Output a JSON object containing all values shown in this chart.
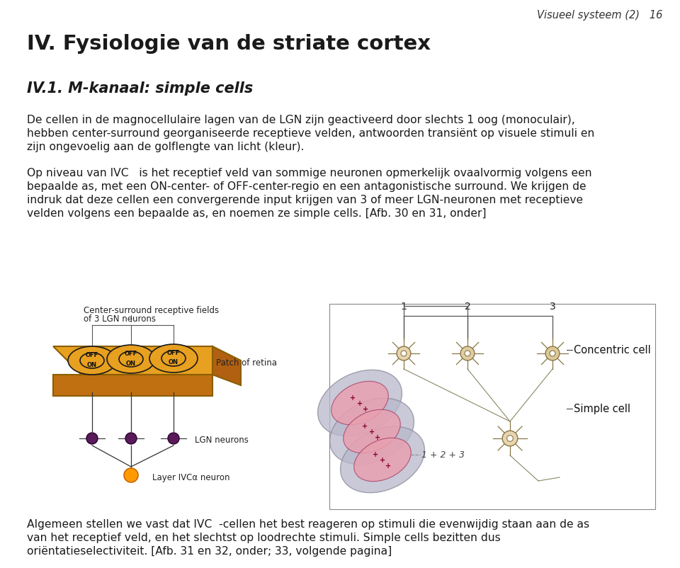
{
  "header_right": "Visueel systeem (2)   16",
  "title_main": "IV. Fysiologie van de striate cortex",
  "subtitle": "IV.1. M-kanaal: simple cells",
  "para1_line1": "De cellen in de magnocellulaire lagen van de LGN zijn geactiveerd door slechts 1 oog (monoculair),",
  "para1_line2": "hebben center-surround georganiseerde receptieve velden, antwoorden transiënt op visuele stimuli en",
  "para1_line3": "zijn ongevoelig aan de golflengte van licht (kleur).",
  "para2_line1": "Op niveau van IVC   is het receptief veld van sommige neuronen opmerkelijk ovaalvormig volgens een",
  "para2_line2": "bepaalde as, met een ON-center- of OFF-center-regio en een antagonistische surround. We krijgen de",
  "para2_line3": "indruk dat deze cellen een convergerende input krijgen van 3 of meer LGN-neuronen met receptieve",
  "para2_line4": "velden volgens een bepaalde as, en noemen ze simple cells. [Afb. 30 en 31, onder]",
  "para3_line1": "Algemeen stellen we vast dat IVC  -cellen het best reageren op stimuli die evenwijdig staan aan de as",
  "para3_line2": "van het receptief veld, en het slechtst op loodrechte stimuli. Simple cells bezitten dus",
  "para3_line3": "oriëntatieselectiviteit. [Afb. 31 en 32, onder; 33, volgende pagina]",
  "label_concentric": "Concentric cell",
  "label_simple": "Simple cell",
  "diag_left_title1": "Center-surround receptive fields",
  "diag_left_title2": "of 3 LGN neurons",
  "diag_left_patch_label": "Patch of retina",
  "diag_left_lgn_label": "LGN neurons",
  "diag_left_layer_label": "Layer IVCα neuron",
  "diag_right_label": "1 + 2 + 3",
  "bg_color": "#ffffff",
  "text_color": "#1a1a1a",
  "header_color": "#333333"
}
